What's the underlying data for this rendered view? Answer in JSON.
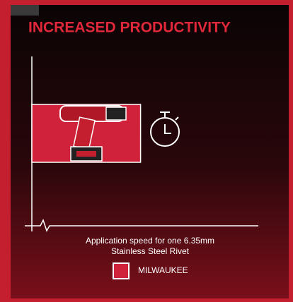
{
  "chart_data": {
    "type": "hbar",
    "title": "INCREASED PRODUCTIVITY",
    "xlabel": [
      "Application speed for one 6.35mm",
      "Stainless Steel Rivet"
    ],
    "categories": [
      null
    ],
    "series": [
      {
        "name": "MILWAUKEE",
        "color": "#d0223a",
        "values": [
          48
        ]
      }
    ],
    "xlim": [
      0,
      100
    ]
  }
}
